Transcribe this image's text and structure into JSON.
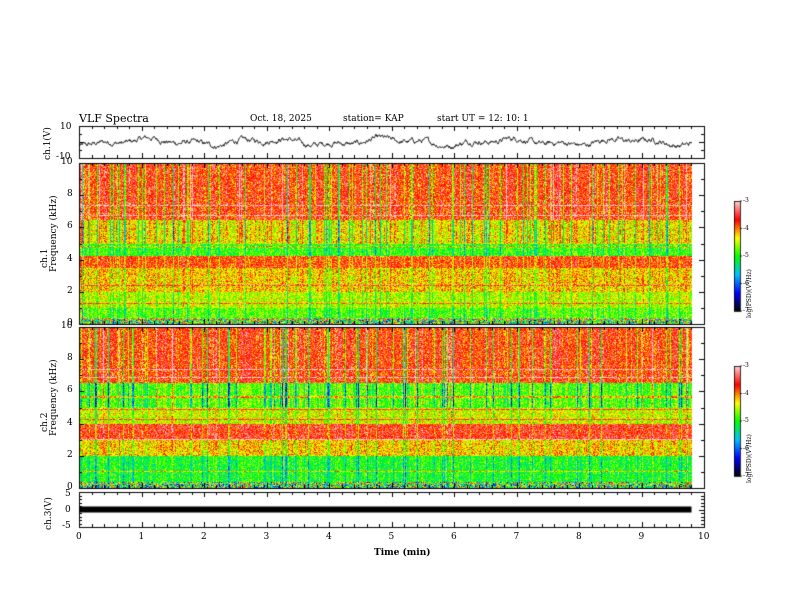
{
  "header": {
    "title": "VLF Spectra",
    "date": "Oct. 18, 2025",
    "station": "station= KAP",
    "start": "start  UT  =   12: 10: 1"
  },
  "panels": {
    "ch1_wave": {
      "ylabel": "ch.1(V)",
      "top_tick": "10",
      "bottom_tick": "-10"
    },
    "ch1_spec": {
      "ylabel_line1": "ch.1",
      "ylabel_line2": "Frequency (kHz)"
    },
    "ch2_spec": {
      "ylabel_line1": "ch.2",
      "ylabel_line2": "Frequency (kHz)"
    },
    "ch3_wave": {
      "ylabel": "ch.3(V)",
      "top_tick": "5",
      "mid_tick": "0",
      "bottom_tick": "-5"
    }
  },
  "colorbar": {
    "label": "log(PSD)(V²/Hz)",
    "ticks": [
      "-3",
      "-4",
      "-5",
      "-6",
      "-7"
    ],
    "stops": [
      "#ffd0d0",
      "#ff0000",
      "#ffff00",
      "#00ff00",
      "#00c0ff",
      "#0000ff",
      "#000000"
    ]
  },
  "chart_data": {
    "type": "heatmap",
    "xlabel": "Time (min)",
    "xlim": [
      0,
      10
    ],
    "x_ticks": [
      "0",
      "1",
      "2",
      "3",
      "4",
      "5",
      "6",
      "7",
      "8",
      "9",
      "10"
    ],
    "data_extent_min": 9.8,
    "spectrogram": {
      "ylabel": "Frequency (kHz)",
      "ylim": [
        0,
        10
      ],
      "y_ticks": [
        "0",
        "2",
        "4",
        "6",
        "8",
        "10"
      ],
      "color_range_log_psd": [
        -7,
        -3
      ],
      "approx_band_log_psd": {
        "ch1": [
          {
            "freq_khz": [
              0,
              1.0
            ],
            "value": -4.8
          },
          {
            "freq_khz": [
              1.0,
              2.0
            ],
            "value": -4.5
          },
          {
            "freq_khz": [
              2.0,
              3.5
            ],
            "value": -4.2
          },
          {
            "freq_khz": [
              3.5,
              4.2
            ],
            "value": -3.8
          },
          {
            "freq_khz": [
              4.2,
              5.0
            ],
            "value": -4.9
          },
          {
            "freq_khz": [
              5.0,
              6.5
            ],
            "value": -4.3
          },
          {
            "freq_khz": [
              6.5,
              10.0
            ],
            "value": -3.7
          }
        ],
        "ch2": [
          {
            "freq_khz": [
              0,
              2.0
            ],
            "value": -5.0
          },
          {
            "freq_khz": [
              2.0,
              3.0
            ],
            "value": -4.2
          },
          {
            "freq_khz": [
              3.0,
              4.0
            ],
            "value": -3.6
          },
          {
            "freq_khz": [
              4.0,
              5.0
            ],
            "value": -4.4
          },
          {
            "freq_khz": [
              5.0,
              6.5
            ],
            "value": -4.8
          },
          {
            "freq_khz": [
              6.5,
              10.0
            ],
            "value": -3.7
          }
        ]
      }
    },
    "ch1_waveform": {
      "ylim": [
        -10,
        10
      ],
      "approx_range_v": [
        -5,
        5
      ]
    },
    "ch3_waveform": {
      "ylim": [
        -5,
        5
      ],
      "approx_value_v": 0
    }
  }
}
